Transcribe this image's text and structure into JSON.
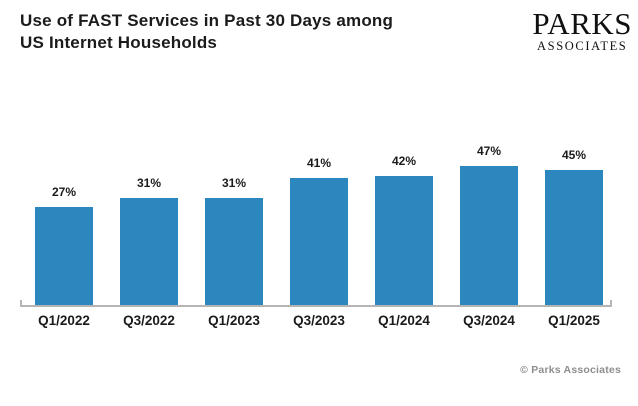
{
  "header": {
    "title_lines": [
      "Use of FAST Services in Past 30 Days among",
      "US Internet Households"
    ],
    "logo": {
      "line1": "PARKS",
      "line2": "ASSOCIATES"
    }
  },
  "chart_data": {
    "type": "bar",
    "title": "Use of FAST Services in Past 30 Days among US Internet Households",
    "categories": [
      "Q1/2022",
      "Q3/2022",
      "Q1/2023",
      "Q3/2023",
      "Q1/2024",
      "Q3/2024",
      "Q1/2025"
    ],
    "values": [
      27,
      31,
      31,
      41,
      42,
      47,
      45
    ],
    "value_labels": [
      "27%",
      "31%",
      "31%",
      "41%",
      "42%",
      "47%",
      "45%"
    ],
    "value_suffix": "%",
    "xlabel": "",
    "ylabel": "",
    "ylim": [
      0,
      50
    ],
    "grid": false,
    "legend": false,
    "bar_color": "#2b87be",
    "axis_color": "#b5b5b5"
  },
  "footer": {
    "copyright": "© Parks Associates"
  }
}
